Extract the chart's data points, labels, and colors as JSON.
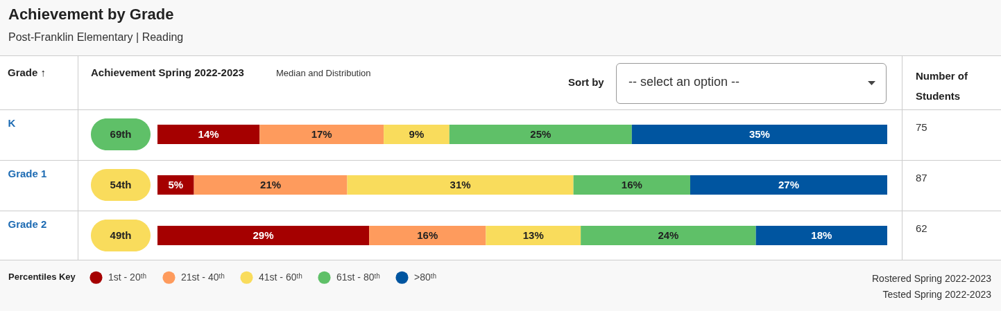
{
  "chart_data": {
    "type": "bar",
    "orientation": "horizontal",
    "stacked": true,
    "title": "Achievement by Grade",
    "subtitle": "Post-Franklin Elementary | Reading",
    "ylabel": "Grade ↑",
    "xlabel": "Achievement Spring 2022-2023",
    "y2label": "Number of Students",
    "legend_title": "Percentiles Key",
    "legend": "bottom left",
    "tick_labels": "y",
    "xlim": [
      0,
      100
    ],
    "categories": [
      "K",
      "Grade 1",
      "Grade 2"
    ],
    "series": [
      {
        "name": "1st - 20ᵗʰ",
        "color": "#a50000",
        "values": [
          14,
          5,
          29
        ],
        "value_labels": [
          "14%",
          "5%",
          "29%"
        ]
      },
      {
        "name": "21st - 40ᵗʰ",
        "color": "#fe9b5d",
        "values": [
          17,
          21,
          16
        ],
        "value_labels": [
          "17%",
          "21%",
          "16%"
        ]
      },
      {
        "name": "41st - 60ᵗʰ",
        "color": "#f9dc5c",
        "values": [
          9,
          31,
          13
        ],
        "value_labels": [
          "9%",
          "31%",
          "13%"
        ]
      },
      {
        "name": "61st - 80ᵗʰ",
        "color": "#5fc068",
        "values": [
          25,
          16,
          24
        ],
        "value_labels": [
          "25%",
          "16%",
          "24%"
        ]
      },
      {
        "name": ">80ᵗʰ",
        "color": "#0055a0",
        "values": [
          35,
          27,
          18
        ],
        "value_labels": [
          "35%",
          "27%",
          "18%"
        ]
      }
    ],
    "annotations": [
      "Median and Distribution",
      "Sort by",
      "-- select an option --",
      "69th",
      "54th",
      "49th",
      "75",
      "87",
      "62",
      "Rostered Spring 2022-2023",
      "Tested Spring 2022-2023"
    ]
  }
}
